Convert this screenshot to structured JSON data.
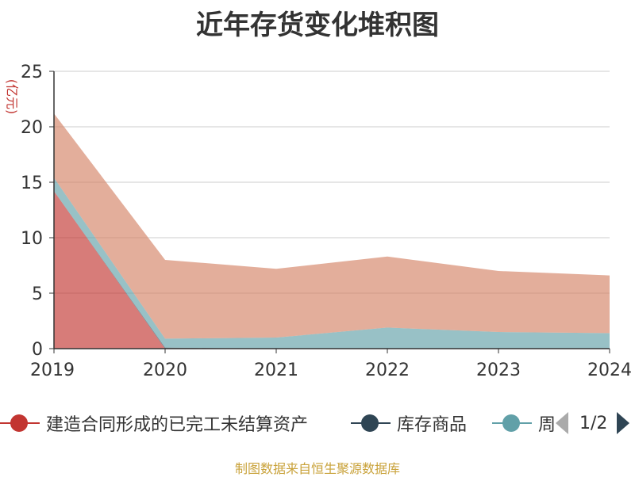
{
  "title": "近年存货变化堆积图",
  "unit_label": "(亿元)",
  "source": "制图数据来自恒生聚源数据库",
  "legend": {
    "items": [
      {
        "label": "建造合同形成的已完工未结算资产",
        "color": "#c23531"
      },
      {
        "label": "库存商品",
        "color": "#2f4554"
      },
      {
        "label": "周转材料",
        "color": "#61a0a8"
      }
    ],
    "pager_text": "1/2"
  },
  "chart_data": {
    "type": "area",
    "stacked": true,
    "title": "近年存货变化堆积图",
    "ylabel": "(亿元)",
    "x": [
      "2019",
      "2020",
      "2021",
      "2022",
      "2023",
      "2024"
    ],
    "ylim": [
      0,
      25
    ],
    "yticks": [
      0,
      5,
      10,
      15,
      20,
      25
    ],
    "grid": true,
    "legend_position": "bottom",
    "series": [
      {
        "name": "建造合同形成的已完工未结算资产",
        "color": "#c23531",
        "values": [
          14.2,
          0,
          0,
          0,
          0,
          0
        ]
      },
      {
        "name": "库存商品",
        "color": "#2f4554",
        "values": [
          0,
          0.1,
          0,
          0,
          0,
          0
        ]
      },
      {
        "name": "周转材料",
        "color": "#61a0a8",
        "values": [
          1.2,
          0.8,
          1.0,
          1.9,
          1.5,
          1.4
        ]
      },
      {
        "color": "#d48265",
        "values": [
          5.8,
          7.1,
          6.2,
          6.4,
          5.5,
          5.2
        ]
      }
    ]
  }
}
